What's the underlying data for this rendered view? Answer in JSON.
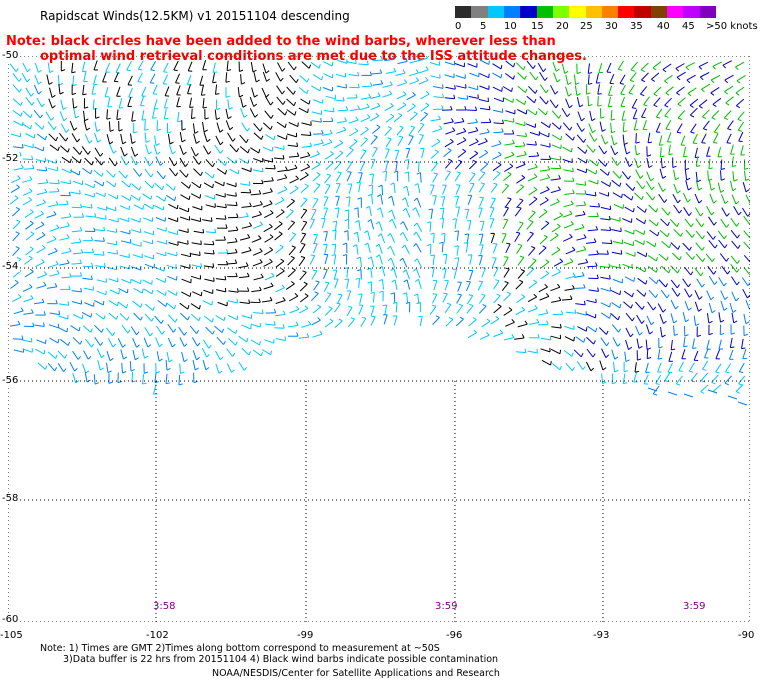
{
  "title": "Rapidscat Winds(12.5KM)  v1  20151104  descending",
  "legend": {
    "labels": [
      "0",
      "5",
      "10",
      "15",
      "20",
      "25",
      "30",
      "35",
      "40",
      "45",
      ">50 knots"
    ],
    "colors": [
      "#2b2b2b",
      "#808080",
      "#00c8ff",
      "#0080ff",
      "#0000c8",
      "#00c000",
      "#80ff00",
      "#ffff00",
      "#ffc000",
      "#ff8000",
      "#ff0000",
      "#c00000",
      "#804000",
      "#ff00ff",
      "#c000ff",
      "#8000c0"
    ]
  },
  "note": {
    "line1": "Note: black circles have been added to the wind barbs, wherever less than",
    "line2": "optimal wind retrieval conditions are met due to the ISS attitude changes."
  },
  "map": {
    "lat_labels": [
      "-50",
      "-52",
      "-54",
      "-56",
      "-58",
      "-60"
    ],
    "lon_labels": [
      "-105",
      "-102",
      "-99",
      "-96",
      "-93",
      "-90"
    ],
    "times": [
      "3:58",
      "3:59",
      "3:59"
    ],
    "lat_range": [
      -60,
      -50
    ],
    "lon_range": [
      -105,
      -90
    ]
  },
  "footer": {
    "line1": "Note: 1) Times are GMT  2)Times along bottom correspond to measurement at ~50S",
    "line2": "3)Data buffer is 22 hrs from 20151104  4) Black wind barbs indicate possible contamination",
    "line3": "NOAA/NESDIS/Center for Satellite Applications and Research"
  }
}
